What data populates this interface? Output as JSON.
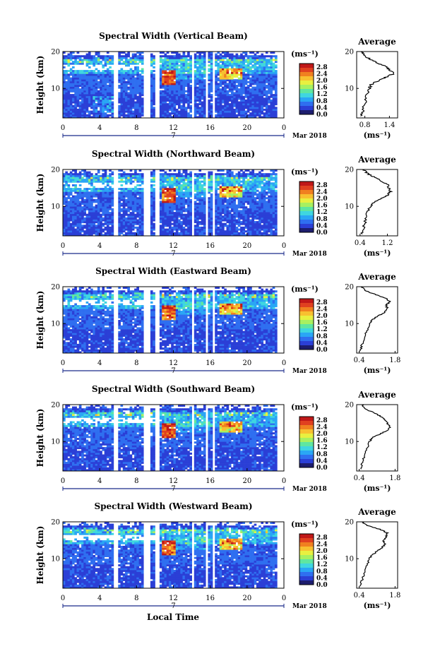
{
  "figure": {
    "xlabel": "Local Time",
    "date_label": "Mar 2018",
    "day_label": "7",
    "colorbar_unit": "(ms⁻¹)",
    "colorbar_ticks": [
      "0.0",
      "0.4",
      "0.8",
      "1.2",
      "1.6",
      "2.0",
      "2.4",
      "2.8"
    ],
    "ylabel": "Height (km)",
    "avg_title": "Average",
    "avg_xlabel": "(ms⁻¹)"
  },
  "colors": {
    "scale": [
      "#1d1d6e",
      "#2b3fd6",
      "#2f6ff0",
      "#2aa6f5",
      "#3fd6e0",
      "#5fe6a0",
      "#a8f060",
      "#e8f040",
      "#f8c030",
      "#f08020",
      "#e04020",
      "#c01818"
    ]
  },
  "chart_data": [
    {
      "type": "heatmap",
      "title": "Spectral Width (Vertical Beam)",
      "xlabel": "Local Time",
      "ylabel": "Height (km)",
      "x_ticks": [
        "0",
        "4",
        "8",
        "12",
        "16",
        "20",
        "0"
      ],
      "y_ticks": [
        "10",
        "20"
      ],
      "xlim": [
        0,
        24
      ],
      "ylim": [
        2,
        20
      ],
      "colorbar": {
        "label": "(ms⁻¹)",
        "range": [
          0.0,
          3.0
        ],
        "ticks": [
          "0.0",
          "0.4",
          "0.8",
          "1.2",
          "1.6",
          "2.0",
          "2.4",
          "2.8"
        ]
      },
      "data_gaps_hours": [
        [
          5.4,
          6.0
        ],
        [
          6.3,
          6.5
        ],
        [
          8.7,
          9.3
        ],
        [
          10.0,
          10.3
        ],
        [
          14.0,
          14.1
        ],
        [
          14.3,
          14.5
        ],
        [
          15.5,
          15.6
        ],
        [
          16.1,
          16.3
        ],
        [
          16.6,
          16.7
        ]
      ],
      "average_profile": {
        "title": "Average",
        "xlabel": "(ms⁻¹)",
        "x_ticks": [
          "0.8",
          "1.4"
        ],
        "xlim": [
          0.6,
          1.6
        ],
        "y_ticks": [
          "10",
          "20"
        ],
        "ylim": [
          2,
          20
        ],
        "height_km": [
          2.5,
          4,
          6,
          8,
          10,
          11,
          12,
          13,
          14,
          15,
          16,
          17,
          18,
          19,
          20
        ],
        "width_ms": [
          0.7,
          0.75,
          0.8,
          0.85,
          0.9,
          0.95,
          1.1,
          1.3,
          1.5,
          1.4,
          1.3,
          1.1,
          0.9,
          0.8,
          0.75
        ]
      }
    },
    {
      "type": "heatmap",
      "title": "Spectral Width (Northward Beam)",
      "xlabel": "Local Time",
      "ylabel": "Height (km)",
      "x_ticks": [
        "0",
        "4",
        "8",
        "12",
        "16",
        "20",
        "0"
      ],
      "y_ticks": [
        "10",
        "20"
      ],
      "xlim": [
        0,
        24
      ],
      "ylim": [
        2,
        20
      ],
      "colorbar": {
        "label": "(ms⁻¹)",
        "range": [
          0.0,
          3.0
        ],
        "ticks": [
          "0.0",
          "0.4",
          "0.8",
          "1.2",
          "1.6",
          "2.0",
          "2.4",
          "2.8"
        ]
      },
      "data_gaps_hours": [
        [
          5.4,
          6.0
        ],
        [
          6.3,
          6.5
        ],
        [
          8.7,
          9.3
        ],
        [
          10.0,
          10.3
        ],
        [
          14.0,
          14.1
        ],
        [
          14.3,
          14.5
        ],
        [
          15.5,
          15.6
        ],
        [
          16.1,
          16.3
        ],
        [
          16.6,
          16.7
        ]
      ],
      "average_profile": {
        "title": "Average",
        "xlabel": "(ms⁻¹)",
        "x_ticks": [
          "0.4",
          "1.2"
        ],
        "xlim": [
          0.3,
          1.5
        ],
        "y_ticks": [
          "10",
          "20"
        ],
        "ylim": [
          2,
          20
        ],
        "height_km": [
          2.5,
          4,
          6,
          8,
          10,
          11,
          12,
          13,
          14,
          15,
          16,
          17,
          18,
          19,
          20
        ],
        "width_ms": [
          0.45,
          0.5,
          0.55,
          0.6,
          0.7,
          0.8,
          1.0,
          1.2,
          1.3,
          1.25,
          1.2,
          1.0,
          0.8,
          0.6,
          0.5
        ]
      }
    },
    {
      "type": "heatmap",
      "title": "Spectral Width (Eastward Beam)",
      "xlabel": "Local Time",
      "ylabel": "Height (km)",
      "x_ticks": [
        "0",
        "4",
        "8",
        "12",
        "16",
        "20",
        "0"
      ],
      "y_ticks": [
        "10",
        "20"
      ],
      "xlim": [
        0,
        24
      ],
      "ylim": [
        2,
        20
      ],
      "colorbar": {
        "label": "(ms⁻¹)",
        "range": [
          0.0,
          3.0
        ],
        "ticks": [
          "0.0",
          "0.4",
          "0.8",
          "1.2",
          "1.6",
          "2.0",
          "2.4",
          "2.8"
        ]
      },
      "data_gaps_hours": [
        [
          5.4,
          6.0
        ],
        [
          6.3,
          6.5
        ],
        [
          8.7,
          9.3
        ],
        [
          10.0,
          10.3
        ],
        [
          14.0,
          14.1
        ],
        [
          14.3,
          14.5
        ],
        [
          15.5,
          15.6
        ],
        [
          16.1,
          16.3
        ],
        [
          16.6,
          16.7
        ]
      ],
      "average_profile": {
        "title": "Average",
        "xlabel": "(ms⁻¹)",
        "x_ticks": [
          "0.4",
          "1.8"
        ],
        "xlim": [
          0.3,
          1.9
        ],
        "y_ticks": [
          "10",
          "20"
        ],
        "ylim": [
          2,
          20
        ],
        "height_km": [
          2.5,
          4,
          6,
          8,
          10,
          11,
          12,
          13,
          14,
          15,
          16,
          17,
          18,
          19,
          20
        ],
        "width_ms": [
          0.45,
          0.5,
          0.6,
          0.7,
          0.8,
          0.9,
          1.1,
          1.4,
          1.5,
          1.45,
          1.6,
          1.4,
          1.0,
          0.6,
          0.5
        ]
      }
    },
    {
      "type": "heatmap",
      "title": "Spectral Width (Southward Beam)",
      "xlabel": "Local Time",
      "ylabel": "Height (km)",
      "x_ticks": [
        "0",
        "4",
        "8",
        "12",
        "16",
        "20",
        "0"
      ],
      "y_ticks": [
        "10",
        "20"
      ],
      "xlim": [
        0,
        24
      ],
      "ylim": [
        2,
        20
      ],
      "colorbar": {
        "label": "(ms⁻¹)",
        "range": [
          0.0,
          3.0
        ],
        "ticks": [
          "0.0",
          "0.4",
          "0.8",
          "1.2",
          "1.6",
          "2.0",
          "2.4",
          "2.8"
        ]
      },
      "data_gaps_hours": [
        [
          5.4,
          6.0
        ],
        [
          6.3,
          6.5
        ],
        [
          8.7,
          9.3
        ],
        [
          10.0,
          10.3
        ],
        [
          14.0,
          14.1
        ],
        [
          14.3,
          14.5
        ],
        [
          15.5,
          15.6
        ],
        [
          16.1,
          16.3
        ],
        [
          16.6,
          16.7
        ]
      ],
      "average_profile": {
        "title": "Average",
        "xlabel": "(ms⁻¹)",
        "x_ticks": [
          "0.4",
          "1.8"
        ],
        "xlim": [
          0.3,
          1.9
        ],
        "y_ticks": [
          "10",
          "20"
        ],
        "ylim": [
          2,
          20
        ],
        "height_km": [
          2.5,
          4,
          6,
          8,
          10,
          11,
          12,
          13,
          14,
          15,
          16,
          17,
          18,
          19,
          20
        ],
        "width_ms": [
          0.45,
          0.5,
          0.6,
          0.7,
          0.8,
          0.9,
          1.2,
          1.5,
          1.6,
          1.5,
          1.4,
          1.2,
          0.9,
          0.6,
          0.5
        ]
      }
    },
    {
      "type": "heatmap",
      "title": "Spectral Width (Westward Beam)",
      "xlabel": "Local Time",
      "ylabel": "Height (km)",
      "x_ticks": [
        "0",
        "4",
        "8",
        "12",
        "16",
        "20",
        "0"
      ],
      "y_ticks": [
        "10",
        "20"
      ],
      "xlim": [
        0,
        24
      ],
      "ylim": [
        2,
        20
      ],
      "colorbar": {
        "label": "(ms⁻¹)",
        "range": [
          0.0,
          3.0
        ],
        "ticks": [
          "0.0",
          "0.4",
          "0.8",
          "1.2",
          "1.6",
          "2.0",
          "2.4",
          "2.8"
        ]
      },
      "data_gaps_hours": [
        [
          5.4,
          6.0
        ],
        [
          6.3,
          6.5
        ],
        [
          8.7,
          9.3
        ],
        [
          10.0,
          10.3
        ],
        [
          14.0,
          14.1
        ],
        [
          14.3,
          14.5
        ],
        [
          15.5,
          15.6
        ],
        [
          16.1,
          16.3
        ],
        [
          16.6,
          16.7
        ]
      ],
      "average_profile": {
        "title": "Average",
        "xlabel": "(ms⁻¹)",
        "x_ticks": [
          "0.4",
          "1.8"
        ],
        "xlim": [
          0.3,
          1.9
        ],
        "y_ticks": [
          "10",
          "20"
        ],
        "ylim": [
          2,
          20
        ],
        "height_km": [
          2.5,
          4,
          6,
          8,
          10,
          11,
          12,
          13,
          14,
          15,
          16,
          17,
          18,
          19,
          20
        ],
        "width_ms": [
          0.45,
          0.5,
          0.6,
          0.7,
          0.8,
          0.9,
          1.1,
          1.3,
          1.4,
          1.35,
          1.45,
          1.5,
          1.2,
          0.7,
          0.5
        ]
      }
    }
  ]
}
